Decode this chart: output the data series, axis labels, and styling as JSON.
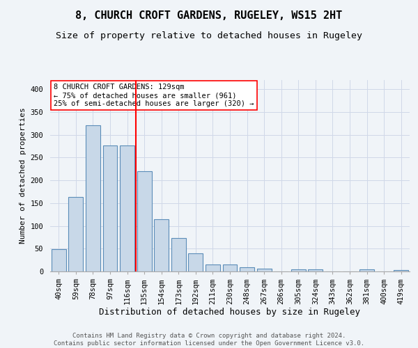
{
  "title": "8, CHURCH CROFT GARDENS, RUGELEY, WS15 2HT",
  "subtitle": "Size of property relative to detached houses in Rugeley",
  "xlabel": "Distribution of detached houses by size in Rugeley",
  "ylabel": "Number of detached properties",
  "categories": [
    "40sqm",
    "59sqm",
    "78sqm",
    "97sqm",
    "116sqm",
    "135sqm",
    "154sqm",
    "173sqm",
    "192sqm",
    "211sqm",
    "230sqm",
    "248sqm",
    "267sqm",
    "286sqm",
    "305sqm",
    "324sqm",
    "343sqm",
    "362sqm",
    "381sqm",
    "400sqm",
    "419sqm"
  ],
  "values": [
    49,
    163,
    320,
    276,
    276,
    220,
    114,
    74,
    40,
    16,
    15,
    9,
    6,
    0,
    4,
    4,
    0,
    0,
    5,
    0,
    3
  ],
  "bar_color": "#c8d8e8",
  "bar_edge_color": "#5b8db8",
  "grid_color": "#d0d8e8",
  "background_color": "#f0f4f8",
  "vline_color": "red",
  "annotation_text": "8 CHURCH CROFT GARDENS: 129sqm\n← 75% of detached houses are smaller (961)\n25% of semi-detached houses are larger (320) →",
  "annotation_box_color": "white",
  "annotation_box_edge": "red",
  "ylim": [
    0,
    420
  ],
  "yticks": [
    0,
    50,
    100,
    150,
    200,
    250,
    300,
    350,
    400
  ],
  "footnote": "Contains HM Land Registry data © Crown copyright and database right 2024.\nContains public sector information licensed under the Open Government Licence v3.0.",
  "title_fontsize": 11,
  "subtitle_fontsize": 9.5,
  "xlabel_fontsize": 9,
  "ylabel_fontsize": 8,
  "tick_fontsize": 7.5,
  "annotation_fontsize": 7.5,
  "footnote_fontsize": 6.5
}
